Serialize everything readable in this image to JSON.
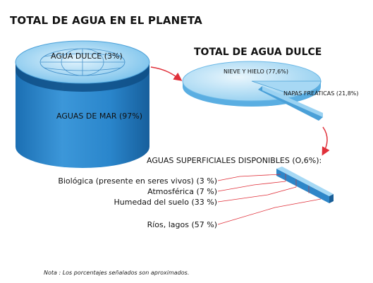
{
  "title": "TOTAL DE AGUA EN EL PLANETA",
  "cylinder": {
    "top_label": "AGUA DULCE (3%)",
    "side_label": "AGUAS DE MAR (97%)"
  },
  "freshwater": {
    "title": "TOTAL DE AGUA DULCE",
    "slices": [
      {
        "label": "NIEVE Y HIELO (77,6%)"
      },
      {
        "label": "NAPAS FREÁTICAS (21,8%)"
      }
    ]
  },
  "surface": {
    "title": "AGUAS SUPERFICIALES DISPONIBLES (O,6%):",
    "items": [
      {
        "label": "Biológica (presente en seres vivos) (3 %)"
      },
      {
        "label": "Atmosférica (7 %)"
      },
      {
        "label": "Humedad del suelo (33 %)"
      },
      {
        "label": "Ríos, lagos (57 %)"
      }
    ]
  },
  "note": "Nota : Los porcentajes señalados son aproximados.",
  "colors": {
    "water_light": "#bfe3f7",
    "water_mid": "#5fb3e6",
    "water_dark": "#1f7fc4",
    "arrow": "#e0303a"
  },
  "chart_data": {
    "type": "diagram",
    "total_planet": [
      {
        "name": "AGUAS DE MAR",
        "value": 97
      },
      {
        "name": "AGUA DULCE",
        "value": 3
      }
    ],
    "freshwater": [
      {
        "name": "NIEVE Y HIELO",
        "value": 77.6
      },
      {
        "name": "NAPAS FREÁTICAS",
        "value": 21.8
      }
    ],
    "surface_available_total": 0.6,
    "surface_breakdown": [
      {
        "name": "Biológica (presente en seres vivos)",
        "value": 3
      },
      {
        "name": "Atmosférica",
        "value": 7
      },
      {
        "name": "Humedad del suelo",
        "value": 33
      },
      {
        "name": "Ríos, lagos",
        "value": 57
      }
    ]
  }
}
